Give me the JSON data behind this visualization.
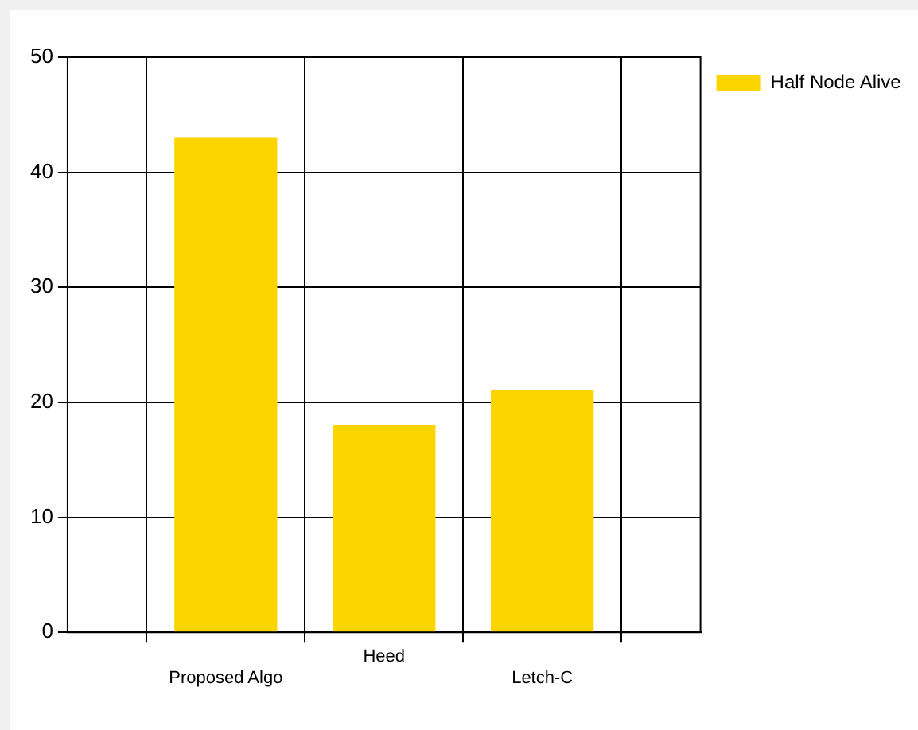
{
  "chart_data": {
    "type": "bar",
    "categories": [
      "Proposed Algo",
      "Heed",
      "Letch-C"
    ],
    "series": [
      {
        "name": "Half Node Alive",
        "color": "#fcd500",
        "values": [
          43,
          18,
          21
        ]
      }
    ],
    "ylim": [
      0,
      50
    ],
    "yticks": [
      0,
      10,
      20,
      30,
      40,
      50
    ],
    "grid": true,
    "legend": "top right"
  }
}
